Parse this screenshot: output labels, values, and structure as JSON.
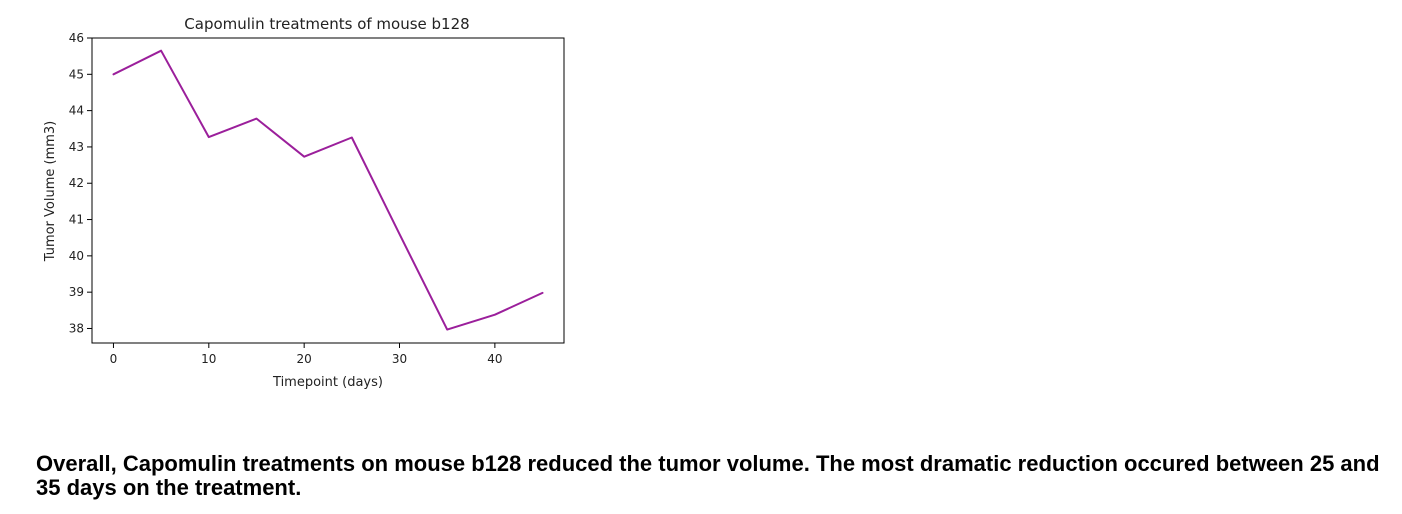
{
  "chart_data": {
    "type": "line",
    "title": "Capomulin treatments of mouse b128",
    "xlabel": "Timepoint (days)",
    "ylabel": "Tumor Volume (mm3)",
    "xlim": [
      -2.25,
      47.25
    ],
    "ylim": [
      37.6,
      46.0
    ],
    "xticks": [
      0,
      10,
      20,
      30,
      40
    ],
    "yticks": [
      38,
      39,
      40,
      41,
      42,
      43,
      44,
      45,
      46
    ],
    "grid": false,
    "series": [
      {
        "color": "#9b1f9b",
        "x": [
          0,
          5,
          10,
          15,
          20,
          25,
          30,
          35,
          40,
          45
        ],
        "y": [
          45.0,
          45.65,
          43.27,
          43.78,
          42.73,
          43.26,
          40.6,
          37.97,
          38.38,
          38.98
        ]
      }
    ]
  },
  "caption": "Overall, Capomulin treatments on mouse b128 reduced the tumor volume. The most dramatic reduction occured between 25 and 35 days on the treatment."
}
